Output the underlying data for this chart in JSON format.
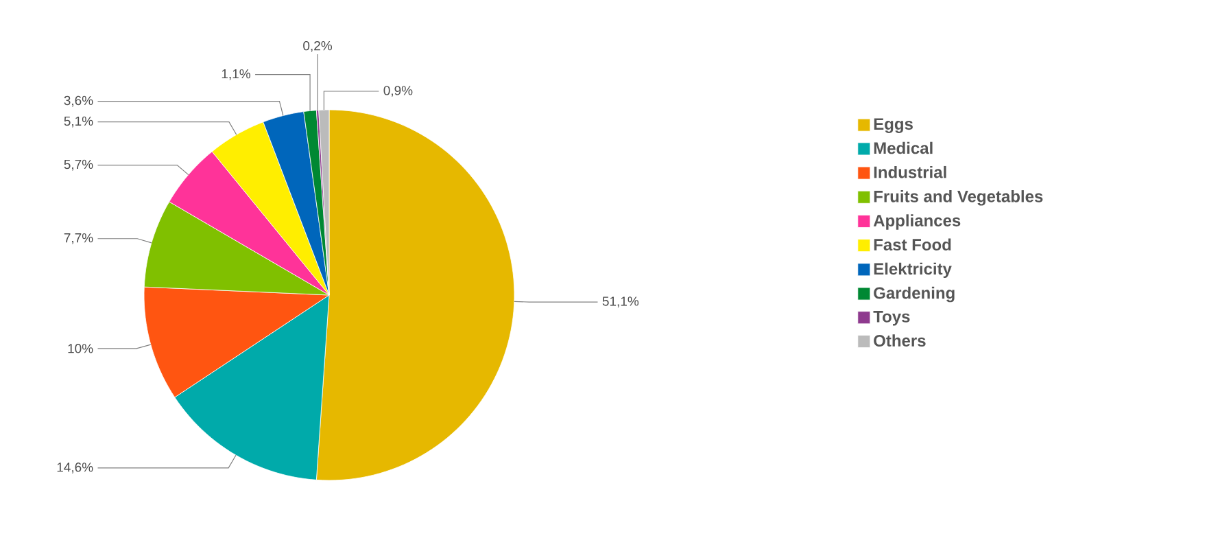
{
  "chart_data": {
    "type": "pie",
    "categories": [
      "Eggs",
      "Medical",
      "Industrial",
      "Fruits and Vegetables",
      "Appliances",
      "Fast Food",
      "Elektricity",
      "Gardening",
      "Toys",
      "Others"
    ],
    "values": [
      51.1,
      14.6,
      10,
      7.7,
      5.7,
      5.1,
      3.6,
      1.1,
      0.2,
      0.9
    ],
    "value_labels": [
      "51,1%",
      "14,6%",
      "10%",
      "7,7%",
      "5,7%",
      "5,1%",
      "3,6%",
      "1,1%",
      "0,2%",
      "0,9%"
    ],
    "colors": [
      "#e6b800",
      "#00aaaa",
      "#ff5511",
      "#80c000",
      "#ff3399",
      "#ffee00",
      "#0066bb",
      "#008833",
      "#8e3a8e",
      "#bbbbbb"
    ],
    "legend": "right"
  }
}
